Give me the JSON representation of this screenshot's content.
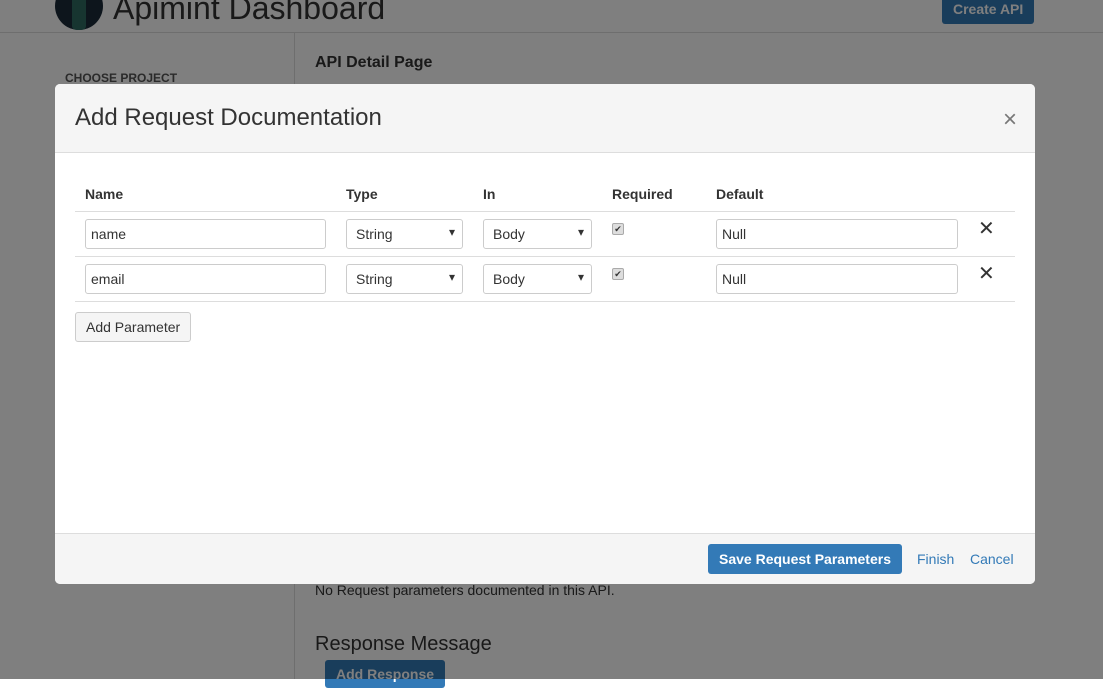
{
  "header": {
    "title": "Apimint Dashboard",
    "create_label": "Create API"
  },
  "sidebar": {
    "choose_project": "CHOOSE PROJECT"
  },
  "main": {
    "detail_title": "API Detail Page",
    "no_request": "No Request parameters documented in this API.",
    "response_title": "Response Message",
    "add_response": "Add Response"
  },
  "modal": {
    "title": "Add Request Documentation",
    "columns": [
      "Name",
      "Type",
      "In",
      "Required",
      "Default"
    ],
    "rows": [
      {
        "name": "name",
        "type": "String",
        "in": "Body",
        "required": true,
        "default": "Null"
      },
      {
        "name": "email",
        "type": "String",
        "in": "Body",
        "required": true,
        "default": "Null"
      }
    ],
    "add_parameter": "Add Parameter",
    "save": "Save Request Parameters",
    "finish": "Finish",
    "cancel": "Cancel"
  }
}
